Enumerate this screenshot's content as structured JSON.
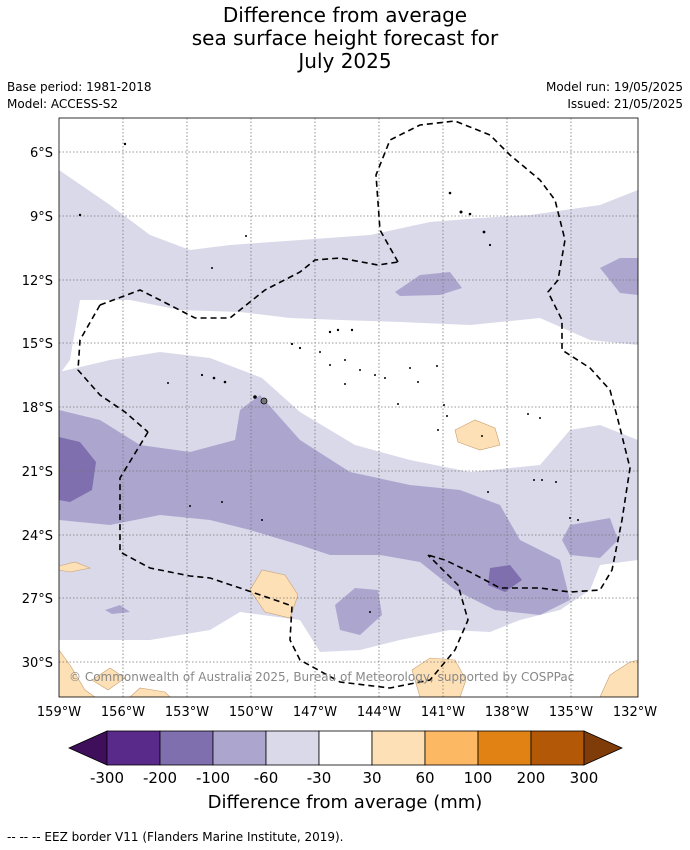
{
  "title_lines": [
    "Difference from average",
    "sea surface height forecast for",
    "July 2025"
  ],
  "base_period": "Base period: 1981-2018",
  "model": "Model: ACCESS-S2",
  "model_run": "Model run: 19/05/2025",
  "issued": "Issued: 21/05/2025",
  "lat_labels": [
    "6°S",
    "9°S",
    "12°S",
    "15°S",
    "18°S",
    "21°S",
    "24°S",
    "27°S",
    "30°S"
  ],
  "lon_labels": [
    "159°W",
    "156°W",
    "153°W",
    "150°W",
    "147°W",
    "144°W",
    "141°W",
    "138°W",
    "135°W",
    "132°W"
  ],
  "copyright": "© Commonwealth of Australia 2025, Bureau of Meteorology, supported by COSPPac",
  "colorbar": {
    "title": "Difference from average (mm)",
    "tick_labels": [
      "-300",
      "-200",
      "-100",
      "-60",
      "-30",
      "30",
      "60",
      "100",
      "200",
      "300"
    ],
    "colors": [
      "#3f0f5c",
      "#5a2a8a",
      "#7f6fae",
      "#aca6cf",
      "#d9d9ea",
      "#ffffff",
      "#fee0b6",
      "#fdb863",
      "#e08214",
      "#b35806",
      "#7f3b08"
    ]
  },
  "footnote": "--  --  -- EEZ border V11 (Flanders Marine Institute, 2019)."
}
